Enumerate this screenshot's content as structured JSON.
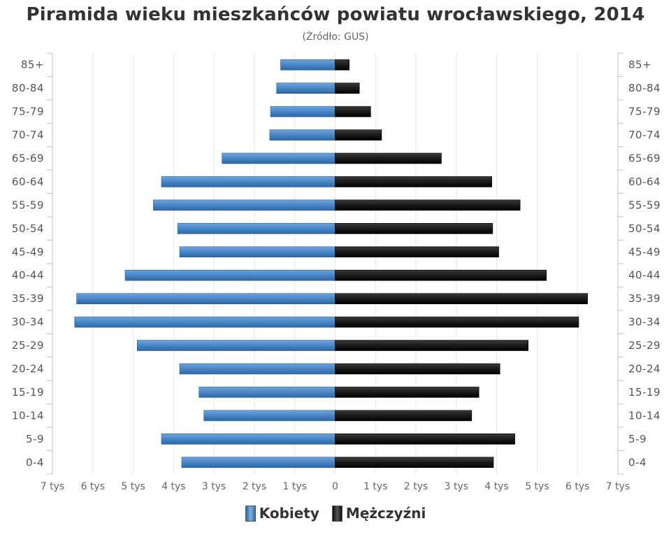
{
  "title": "Piramida wieku mieszkańców powiatu wrocławskiego, 2014",
  "subtitle": "(Źródło: GUS)",
  "colors": {
    "women": "#4a86c5",
    "men": "#1a1a1a",
    "grid": "#e6e6e6"
  },
  "legend": {
    "women": "Kobiety",
    "men": "Mężczyźni"
  },
  "chart_data": {
    "type": "bar",
    "orientation": "horizontal-population-pyramid",
    "categories": [
      "85+",
      "80-84",
      "75-79",
      "70-74",
      "65-69",
      "60-64",
      "55-59",
      "50-54",
      "45-49",
      "40-44",
      "35-39",
      "30-34",
      "25-29",
      "20-24",
      "15-19",
      "10-14",
      "5-9",
      "0-4"
    ],
    "series": [
      {
        "name": "Kobiety",
        "side": "left",
        "values": [
          1350,
          1450,
          1600,
          1620,
          2800,
          4300,
          4500,
          3900,
          3850,
          5200,
          6400,
          6450,
          4900,
          3850,
          3370,
          3250,
          4300,
          3800
        ]
      },
      {
        "name": "Mężczyźni",
        "side": "right",
        "values": [
          350,
          600,
          880,
          1150,
          2630,
          3880,
          4580,
          3900,
          4050,
          5230,
          6250,
          6030,
          4780,
          4080,
          3560,
          3380,
          4450,
          3920
        ]
      }
    ],
    "x_ticks": [
      "7 tys",
      "6 tys",
      "5 tys",
      "4 tys",
      "3 tys",
      "2 tys",
      "1 tys",
      "0",
      "1 tys",
      "2 tys",
      "3 tys",
      "4 tys",
      "5 tys",
      "6 tys",
      "7 tys"
    ],
    "xlim": [
      -7000,
      7000
    ],
    "grid": true,
    "legend_position": "bottom-center"
  }
}
